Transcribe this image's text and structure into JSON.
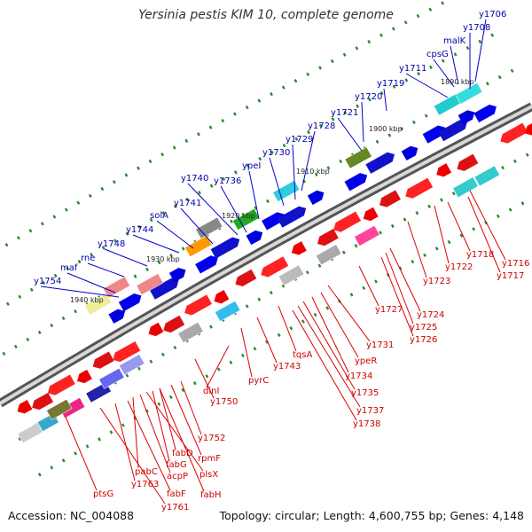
{
  "title": "Yersinia pestis KIM 10, complete genome",
  "accession": "Accession: NC_004088",
  "topology": "Topology: circular; Length: 4,600,755 bp; Genes: 4,148",
  "ticks": [
    "1890 kbp",
    "1900 kbp",
    "1910 kbp",
    "1920 kbp",
    "1930 kbp",
    "1940 kbp"
  ],
  "colors": {
    "forward_label": "#0000aa",
    "reverse_label": "#cc0000",
    "backbone": "#888888"
  },
  "forward_genes": [
    "y1706",
    "y1708",
    "malK",
    "cpsG",
    "y1711",
    "y1719",
    "y1720",
    "y1721",
    "y1728",
    "y1729",
    "y1730",
    "ypeI",
    "y1736",
    "y1740",
    "y1741",
    "solA",
    "y1744",
    "y1748",
    "rne",
    "maf",
    "y1754"
  ],
  "reverse_genes": [
    "y1716",
    "y1717",
    "y1718",
    "y1722",
    "y1723",
    "y1724",
    "y1725",
    "y1726",
    "y1727",
    "y1731",
    "ypeR",
    "y1734",
    "y1735",
    "y1737",
    "y1738",
    "tqsA",
    "y1743",
    "pyrC",
    "dinI",
    "y1750",
    "y1752",
    "rpmF",
    "fabD",
    "fabG",
    "plsX",
    "acpP",
    "pabC",
    "fabF",
    "fabH",
    "y1763",
    "y1761",
    "ptsG"
  ]
}
